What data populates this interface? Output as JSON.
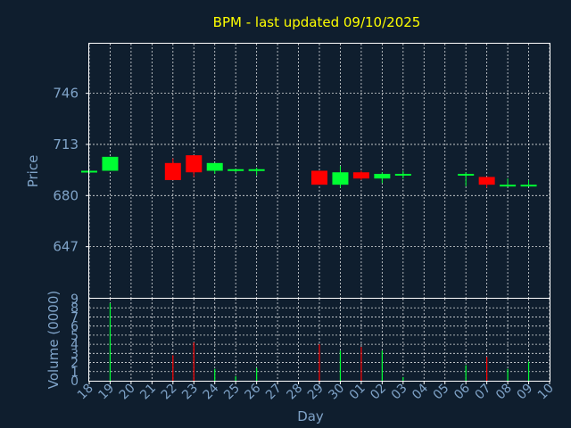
{
  "chart_data": {
    "type": "candlestick",
    "title": "BPM - last updated 09/10/2025",
    "xlabel": "Day",
    "ylabel": "Price",
    "volume_label": "Volume (0000)",
    "grid": true,
    "colors": {
      "up": "#00ff33",
      "down": "#ff0000",
      "title": "#ffff00",
      "axis_text": "#7fa3c8",
      "background": "#0f1e2e"
    },
    "price_ylim": [
      614,
      778
    ],
    "price_ticks": [
      647,
      680,
      713,
      746
    ],
    "volume_ylim": [
      0,
      9
    ],
    "volume_ticks": [
      0,
      1,
      2,
      3,
      4,
      5,
      6,
      7,
      8,
      9
    ],
    "x_labels": [
      "18",
      "19",
      "20",
      "21",
      "22",
      "23",
      "24",
      "25",
      "26",
      "27",
      "28",
      "29",
      "30",
      "01",
      "02",
      "03",
      "04",
      "05",
      "06",
      "07",
      "08",
      "09",
      "10"
    ],
    "candles": [
      {
        "x": 0,
        "open": 696,
        "close": 696,
        "high": 696,
        "low": 696,
        "volume": 0
      },
      {
        "x": 1,
        "open": 696,
        "close": 705,
        "high": 705,
        "low": 696,
        "volume": 8.5
      },
      {
        "x": 4,
        "open": 701,
        "close": 690,
        "high": 704,
        "low": 690,
        "volume": 2.8
      },
      {
        "x": 5,
        "open": 706,
        "close": 695,
        "high": 706,
        "low": 692,
        "volume": 4.2
      },
      {
        "x": 6,
        "open": 696,
        "close": 701,
        "high": 701,
        "low": 694,
        "volume": 1.3
      },
      {
        "x": 7,
        "open": 696,
        "close": 697,
        "high": 697,
        "low": 695,
        "volume": 0.5
      },
      {
        "x": 8,
        "open": 696,
        "close": 697,
        "high": 698,
        "low": 693,
        "volume": 1.4
      },
      {
        "x": 11,
        "open": 696,
        "close": 687,
        "high": 696,
        "low": 687,
        "volume": 4.0
      },
      {
        "x": 12,
        "open": 687,
        "close": 695,
        "high": 699,
        "low": 685,
        "volume": 3.3
      },
      {
        "x": 13,
        "open": 695,
        "close": 691,
        "high": 696,
        "low": 690,
        "volume": 3.7
      },
      {
        "x": 14,
        "open": 691,
        "close": 694,
        "high": 695,
        "low": 688,
        "volume": 3.3
      },
      {
        "x": 15,
        "open": 694,
        "close": 694,
        "high": 696,
        "low": 691,
        "volume": 0.4
      },
      {
        "x": 18,
        "open": 694,
        "close": 694,
        "high": 695,
        "low": 686,
        "volume": 1.7
      },
      {
        "x": 19,
        "open": 692,
        "close": 687,
        "high": 692,
        "low": 685,
        "volume": 2.6
      },
      {
        "x": 20,
        "open": 687,
        "close": 687,
        "high": 691,
        "low": 687,
        "volume": 1.3
      },
      {
        "x": 21,
        "open": 686,
        "close": 687,
        "high": 690,
        "low": 686,
        "volume": 2.1
      }
    ]
  }
}
